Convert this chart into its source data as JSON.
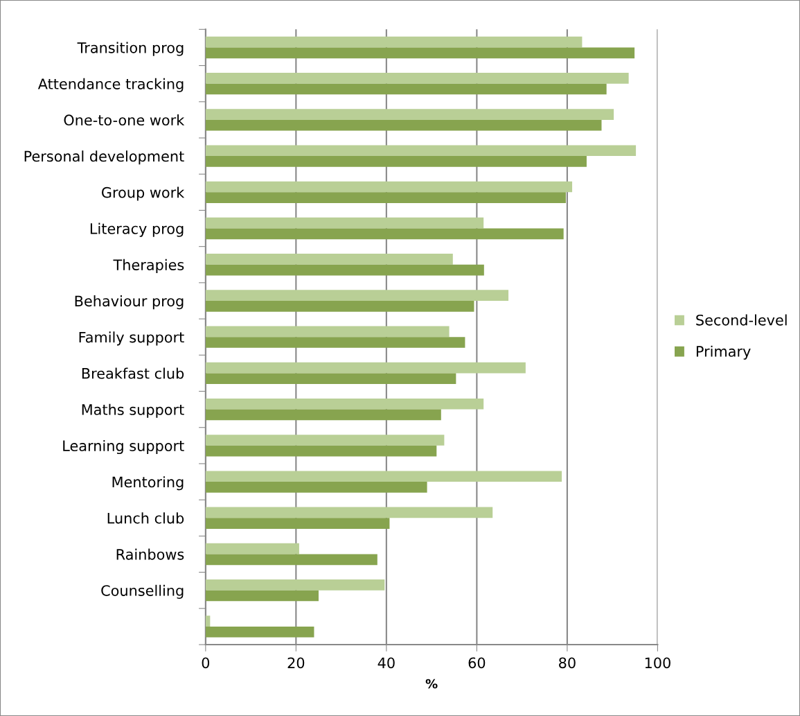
{
  "chart_data": {
    "type": "bar",
    "orientation": "horizontal",
    "xlabel": "%",
    "categories": [
      "Transition prog",
      "Attendance tracking",
      "One-to-one work",
      "Personal development",
      "Group work",
      "Literacy prog",
      "Therapies",
      "Behaviour prog",
      "Family support",
      "Breakfast club",
      "Maths support",
      "Learning support",
      "Mentoring",
      "Lunch club",
      "Rainbows",
      "Counselling",
      null
    ],
    "series": [
      {
        "name": "Second-level",
        "color": "#b9cf96",
        "values": [
          83.3,
          93.6,
          90.3,
          95.2,
          81.1,
          61.5,
          54.7,
          67.0,
          53.9,
          70.8,
          61.5,
          52.8,
          78.8,
          63.5,
          20.7,
          39.6,
          1.0
        ]
      },
      {
        "name": "Primary",
        "color": "#87a44f",
        "values": [
          94.9,
          88.7,
          87.6,
          84.3,
          79.7,
          79.2,
          61.6,
          59.4,
          57.4,
          55.4,
          52.1,
          51.1,
          49.0,
          40.7,
          38.0,
          25.0,
          24.0
        ]
      }
    ],
    "xlim": [
      0,
      100
    ],
    "xticks": [
      0,
      20,
      40,
      60,
      80,
      100
    ],
    "grid": "x",
    "legend": "right"
  }
}
